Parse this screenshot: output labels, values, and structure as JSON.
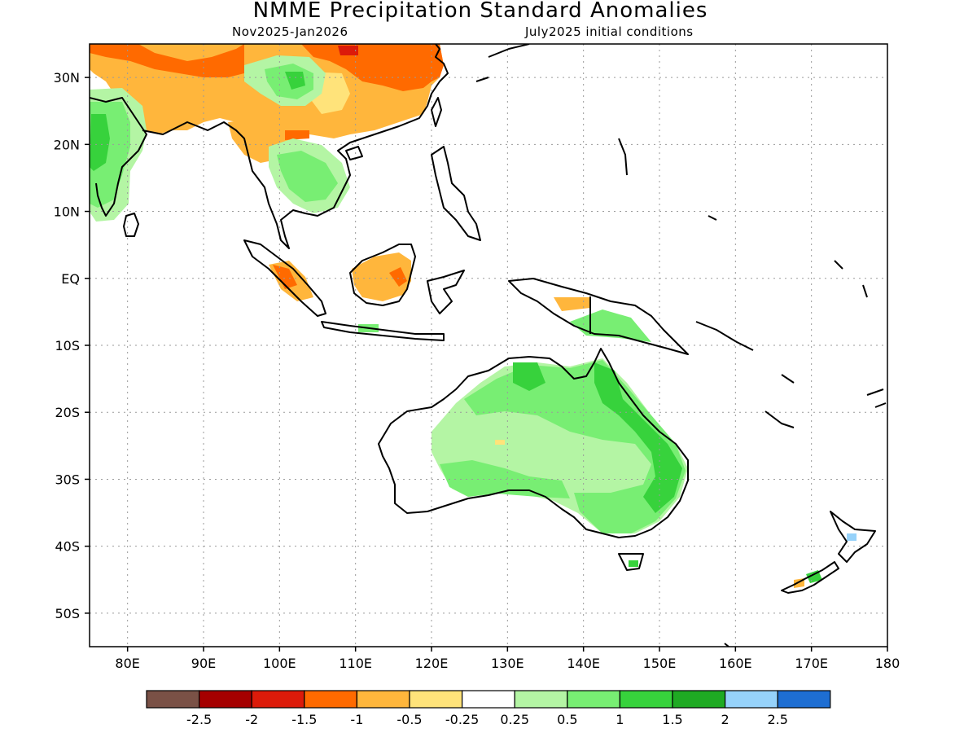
{
  "title": "NMME Precipitation Standard Anomalies",
  "subtitle_left": "Nov2025-Jan2026",
  "subtitle_right": "July2025 initial conditions",
  "map": {
    "lon_min": 75,
    "lon_max": 180,
    "lat_min": -55,
    "lat_max": 35,
    "lon_ticks": [
      {
        "lon": 80,
        "label": "80E"
      },
      {
        "lon": 90,
        "label": "90E"
      },
      {
        "lon": 100,
        "label": "100E"
      },
      {
        "lon": 110,
        "label": "110E"
      },
      {
        "lon": 120,
        "label": "120E"
      },
      {
        "lon": 130,
        "label": "130E"
      },
      {
        "lon": 140,
        "label": "140E"
      },
      {
        "lon": 150,
        "label": "150E"
      },
      {
        "lon": 160,
        "label": "160E"
      },
      {
        "lon": 170,
        "label": "170E"
      },
      {
        "lon": 180,
        "label": "180"
      }
    ],
    "lat_ticks": [
      {
        "lat": 30,
        "label": "30N"
      },
      {
        "lat": 20,
        "label": "20N"
      },
      {
        "lat": 10,
        "label": "10N"
      },
      {
        "lat": 0,
        "label": "EQ"
      },
      {
        "lat": -10,
        "label": "10S"
      },
      {
        "lat": -20,
        "label": "20S"
      },
      {
        "lat": -30,
        "label": "30S"
      },
      {
        "lat": -40,
        "label": "40S"
      },
      {
        "lat": -50,
        "label": "50S"
      }
    ]
  },
  "colorbar": {
    "colors": [
      "#7a5146",
      "#a50000",
      "#dc1b0a",
      "#ff6a00",
      "#ffb63c",
      "#ffe37a",
      "#ffffff",
      "#b4f5a4",
      "#78ee73",
      "#37d23c",
      "#1faa23",
      "#96d2fa",
      "#1e6ed2"
    ],
    "labels": [
      "-2.5",
      "-2",
      "-1.5",
      "-1",
      "-0.5",
      "-0.25",
      "0.25",
      "0.5",
      "1",
      "1.5",
      "2",
      "2.5"
    ]
  }
}
